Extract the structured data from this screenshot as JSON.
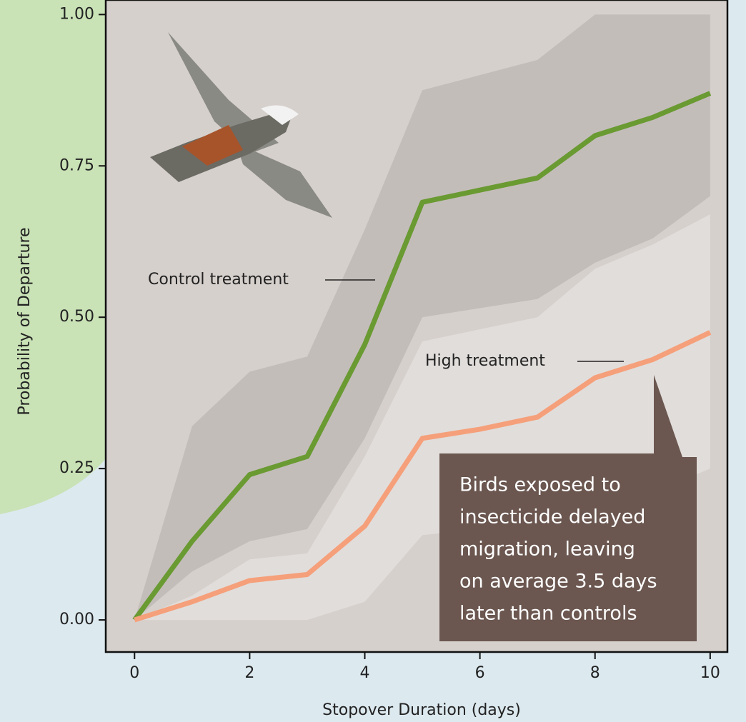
{
  "chart_data": {
    "type": "line",
    "x_label": "Stopover Duration (days)",
    "y_label": "Probability of Departure",
    "x": [
      0,
      1,
      2,
      3,
      4,
      5,
      6,
      7,
      8,
      9,
      10
    ],
    "series": [
      {
        "name": "Control treatment",
        "color": "#6a9a32",
        "band_color": "#c3bdba",
        "values": [
          0,
          0.13,
          0.24,
          0.27,
          0.455,
          0.69,
          0.71,
          0.73,
          0.8,
          0.83,
          0.87
        ],
        "lower": [
          0,
          0.08,
          0.13,
          0.15,
          0.3,
          0.5,
          0.515,
          0.53,
          0.59,
          0.63,
          0.7
        ],
        "upper": [
          0,
          0.32,
          0.41,
          0.435,
          0.645,
          0.875,
          0.9,
          0.925,
          1.0,
          1.0,
          1.0
        ]
      },
      {
        "name": "High treatment",
        "color": "#f5a07a",
        "band_color": "#e3dfdd",
        "values": [
          0,
          0.03,
          0.065,
          0.075,
          0.155,
          0.3,
          0.315,
          0.335,
          0.4,
          0.43,
          0.475
        ],
        "lower": [
          0,
          0,
          0,
          0,
          0.03,
          0.14,
          0.15,
          0.16,
          0.18,
          0.21,
          0.25
        ],
        "upper": [
          0,
          0.04,
          0.1,
          0.11,
          0.27,
          0.46,
          0.48,
          0.5,
          0.58,
          0.62,
          0.67
        ]
      }
    ],
    "xlim": [
      -0.5,
      10.3
    ],
    "ylim": [
      -0.053,
      1.024
    ],
    "xticks": [
      0,
      2,
      4,
      6,
      8,
      10
    ],
    "yticks": [
      {
        "value": 0,
        "label": "0.00"
      },
      {
        "value": 0.25,
        "label": "0.25"
      },
      {
        "value": 0.5,
        "label": "0.50"
      },
      {
        "value": 0.75,
        "label": "0.75"
      },
      {
        "value": 1,
        "label": "1.00"
      }
    ],
    "annotation": [
      "Birds exposed to",
      "insecticide delayed",
      "migration, leaving",
      "on average 3.5 days",
      "later than controls"
    ]
  }
}
